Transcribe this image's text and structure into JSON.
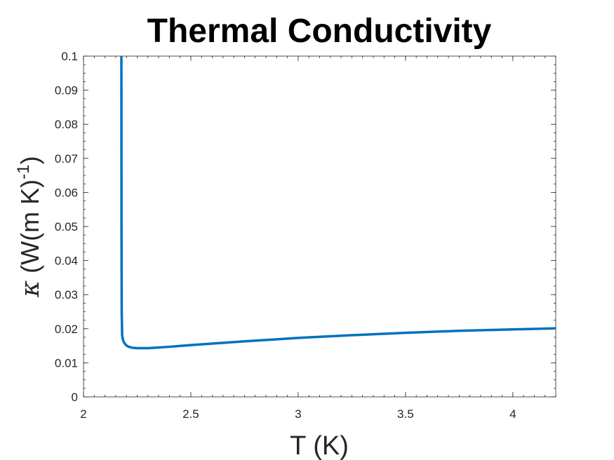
{
  "chart_data": {
    "type": "line",
    "title": "Thermal Conductivity",
    "xlabel": "T (K)",
    "ylabel": {
      "symbol": "κ",
      "text": " (W(m K)",
      "superscript": "-1",
      "close": ")"
    },
    "xlim": [
      2,
      4.2
    ],
    "ylim": [
      0,
      0.1
    ],
    "xticks": [
      "2",
      "2.5",
      "3",
      "3.5",
      "4"
    ],
    "xtick_values": [
      2,
      2.5,
      3,
      3.5,
      4
    ],
    "yticks": [
      "0",
      "0.01",
      "0.02",
      "0.03",
      "0.04",
      "0.05",
      "0.06",
      "0.07",
      "0.08",
      "0.09",
      "0.1"
    ],
    "ytick_values": [
      0,
      0.01,
      0.02,
      0.03,
      0.04,
      0.05,
      0.06,
      0.07,
      0.08,
      0.09,
      0.1
    ],
    "grid": false,
    "minor_ticks": true,
    "line_color": "#0072BD",
    "series": [
      {
        "x": [
          2.1765,
          2.177,
          2.178,
          2.18,
          2.185,
          2.19,
          2.2,
          2.21,
          2.23,
          2.25,
          2.3,
          2.4,
          2.5,
          2.75,
          3.0,
          3.25,
          3.5,
          3.75,
          4.0,
          4.2
        ],
        "y": [
          0.1,
          0.05,
          0.025,
          0.018,
          0.0165,
          0.0158,
          0.0151,
          0.0147,
          0.0144,
          0.0143,
          0.0143,
          0.0147,
          0.0152,
          0.0163,
          0.0173,
          0.0181,
          0.0188,
          0.0194,
          0.0198,
          0.0201
        ]
      }
    ]
  }
}
